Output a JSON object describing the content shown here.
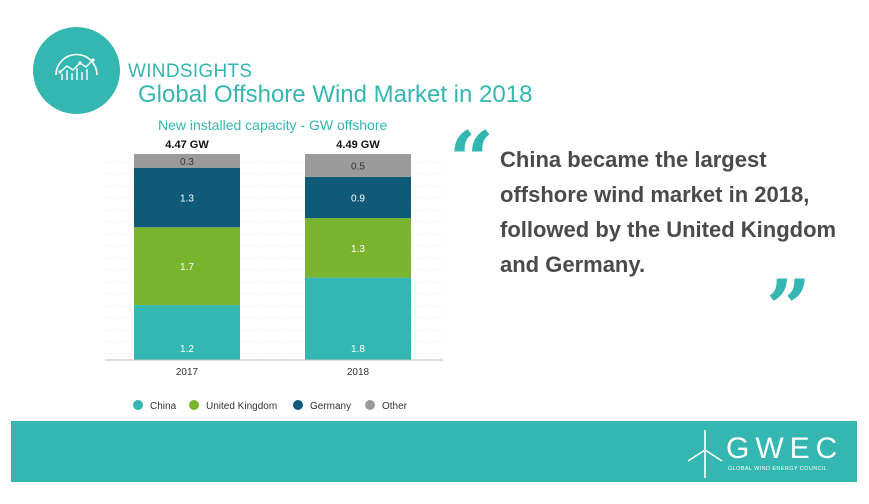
{
  "brand": {
    "name": "WINDSIGHTS",
    "icon": "chart-gauge-icon"
  },
  "title": "Global Offshore Wind Market in 2018",
  "subtitle": "New installed capacity - GW offshore",
  "quote": {
    "text": "China became the largest offshore wind market in 2018, followed by the United Kingdom and Germany.",
    "open_mark": "“",
    "close_mark": "”"
  },
  "footer": {
    "org_name": "GWEC",
    "org_full": "GLOBAL WIND ENERGY COUNCIL",
    "icon": "wind-turbine-icon",
    "color": "#33b7b0"
  },
  "chart_data": {
    "type": "bar",
    "stacked": true,
    "categories": [
      "2017",
      "2018"
    ],
    "totals": [
      "4.47 GW",
      "4.49 GW"
    ],
    "series": [
      {
        "name": "China",
        "color": "#33b7b0",
        "values": [
          1.2,
          1.8
        ]
      },
      {
        "name": "United Kingdom",
        "color": "#7ab32e",
        "values": [
          1.7,
          1.3
        ]
      },
      {
        "name": "Germany",
        "color": "#0e5a78",
        "values": [
          1.3,
          0.9
        ]
      },
      {
        "name": "Other",
        "color": "#9b9b9b",
        "values": [
          0.3,
          0.5
        ]
      }
    ],
    "legend_position": "bottom",
    "grid": true
  }
}
